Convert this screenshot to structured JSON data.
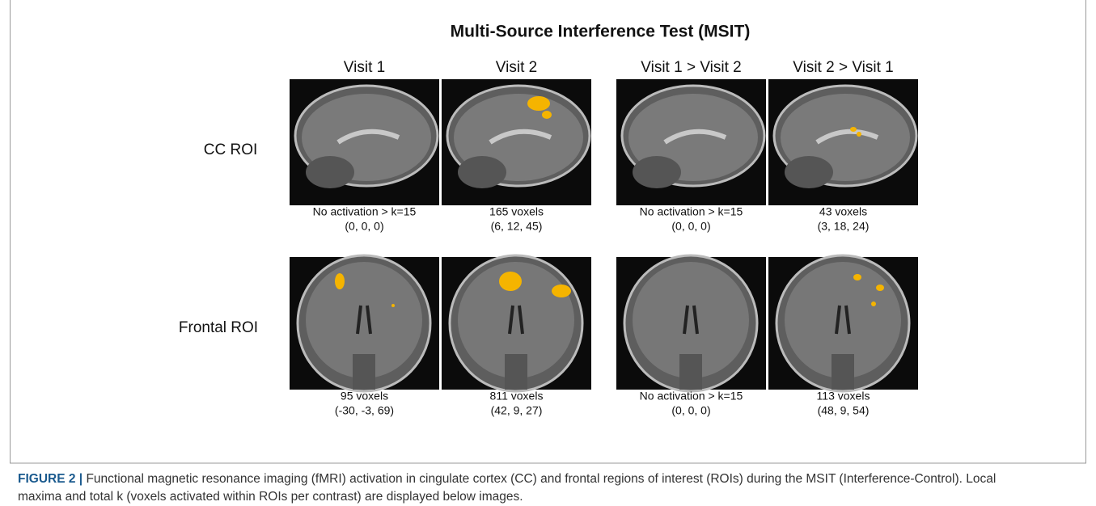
{
  "figure": {
    "title": "Multi-Source Interference Test (MSIT)",
    "columns": [
      "Visit 1",
      "Visit 2",
      "Visit 1 > Visit 2",
      "Visit 2 > Visit 1"
    ],
    "rows": [
      {
        "label": "CC ROI",
        "cells": [
          {
            "voxels": "No activation > k=15",
            "coords": "(0, 0, 0)"
          },
          {
            "voxels": "165 voxels",
            "coords": "(6, 12, 45)"
          },
          {
            "voxels": "No activation > k=15",
            "coords": "(0, 0, 0)"
          },
          {
            "voxels": "43 voxels",
            "coords": "(3, 18, 24)"
          }
        ]
      },
      {
        "label": "Frontal ROI",
        "cells": [
          {
            "voxels": "95 voxels",
            "coords": "(-30, -3, 69)"
          },
          {
            "voxels": "811 voxels",
            "coords": "(42, 9, 27)"
          },
          {
            "voxels": "No activation > k=15",
            "coords": "(0, 0, 0)"
          },
          {
            "voxels": "113 voxels",
            "coords": "(48, 9, 54)"
          }
        ]
      }
    ]
  },
  "caption": {
    "label": "FIGURE 2 |",
    "text": "Functional magnetic resonance imaging (fMRI) activation in cingulate cortex (CC) and frontal regions of interest (ROIs) during the MSIT (Interference-Control). Local maxima and total k (voxels activated within ROIs per contrast) are displayed below images."
  }
}
